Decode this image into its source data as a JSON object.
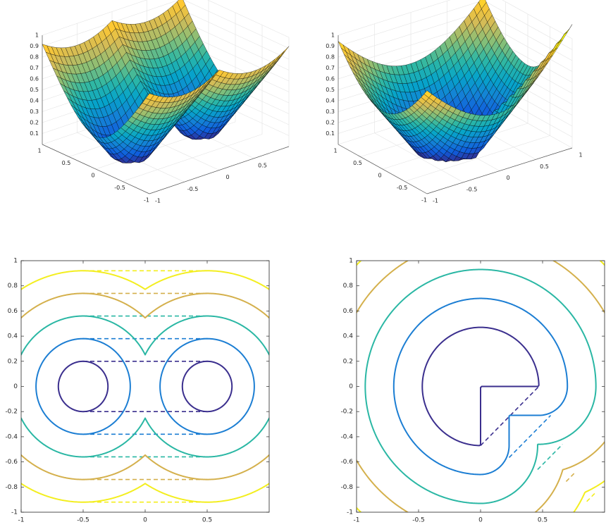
{
  "chart_data": [
    {
      "type": "surface",
      "colormap": "parula",
      "centers": [
        [
          -0.5,
          0
        ],
        [
          0.5,
          0
        ]
      ],
      "radius": 0.2,
      "xlim": [
        -1,
        1
      ],
      "ylim": [
        -1,
        1
      ],
      "zlim": [
        0,
        1
      ],
      "xticks": [
        -1,
        -0.5,
        0,
        0.5
      ],
      "yticks": [
        -1,
        -0.5,
        0,
        0.5,
        1
      ],
      "zticks": [
        0.1,
        0.2,
        0.3,
        0.4,
        0.5,
        0.6,
        0.7,
        0.8,
        0.9,
        1
      ],
      "grid": true
    },
    {
      "type": "surface",
      "colormap": "parula",
      "radius": 0.47,
      "xlim": [
        -1,
        1
      ],
      "ylim": [
        -1,
        1
      ],
      "zlim": [
        0,
        1
      ],
      "xticks": [
        -1,
        -0.5,
        0,
        0.5,
        1
      ],
      "yticks": [
        -1,
        -0.5,
        0,
        0.5,
        1
      ],
      "zticks": [
        0.1,
        0.2,
        0.3,
        0.4,
        0.5,
        0.6,
        0.7,
        0.8,
        0.9,
        1
      ],
      "grid": true
    },
    {
      "type": "contour",
      "centers": [
        [
          -0.5,
          0
        ],
        [
          0.5,
          0
        ]
      ],
      "radius": 0.2,
      "levels": [
        0,
        0.18,
        0.36,
        0.54,
        0.72
      ],
      "colors": [
        "#3b2f8e",
        "#1c7ed3",
        "#2ab7a4",
        "#d4b04c",
        "#f3ee1f"
      ],
      "xlim": [
        -1,
        1
      ],
      "ylim": [
        -1,
        1
      ],
      "xticks": [
        -1,
        -0.5,
        0,
        0.5
      ],
      "yticks": [
        -1,
        -0.8,
        -0.6,
        -0.4,
        -0.2,
        0,
        0.2,
        0.4,
        0.6,
        0.8,
        1
      ]
    },
    {
      "type": "contour",
      "radius": 0.47,
      "levels": [
        0,
        0.23,
        0.46,
        0.69,
        0.92
      ],
      "colors": [
        "#3b2f8e",
        "#1c7ed3",
        "#2ab7a4",
        "#d4b04c",
        "#f3ee1f"
      ],
      "xlim": [
        -1,
        1
      ],
      "ylim": [
        -1,
        1
      ],
      "xticks": [
        -1,
        -0.5,
        0,
        0.5
      ],
      "yticks": [
        -1,
        -0.8,
        -0.6,
        -0.4,
        -0.2,
        0,
        0.2,
        0.4,
        0.6,
        0.8,
        1
      ]
    }
  ]
}
